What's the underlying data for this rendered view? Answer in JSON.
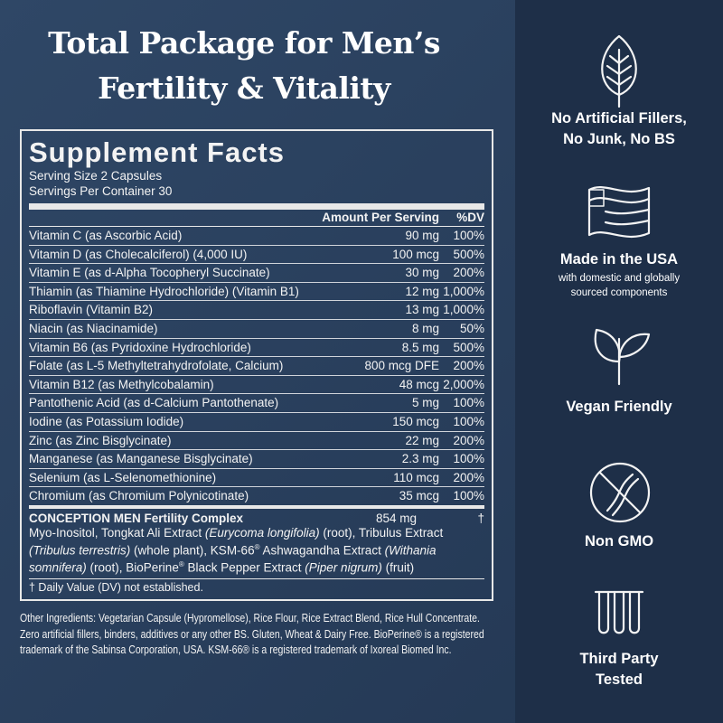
{
  "header": {
    "title_lines": [
      "Total Package for Men’s",
      "Fertility & Vitality"
    ]
  },
  "facts": {
    "title": "Supplement Facts",
    "serving_size": "Serving Size 2 Capsules",
    "servings_per_container": "Servings Per Container 30",
    "column_amount": "Amount Per Serving",
    "column_dv": "%DV",
    "rows": [
      [
        "Vitamin C (as Ascorbic Acid)",
        "90 mg",
        "100%"
      ],
      [
        "Vitamin D (as Cholecalciferol) (4,000 IU)",
        "100 mcg",
        "500%"
      ],
      [
        "Vitamin E (as d-Alpha Tocopheryl Succinate)",
        "30 mg",
        "200%"
      ],
      [
        "Thiamin (as Thiamine Hydrochloride) (Vitamin B1)",
        "12 mg",
        "1,000%"
      ],
      [
        "Riboflavin (Vitamin B2)",
        "13 mg",
        "1,000%"
      ],
      [
        "Niacin (as Niacinamide)",
        "8 mg",
        "50%"
      ],
      [
        "Vitamin B6 (as Pyridoxine Hydrochloride)",
        "8.5 mg",
        "500%"
      ],
      [
        "Folate (as L-5 Methyltetrahydrofolate, Calcium)",
        "800 mcg DFE",
        "200%"
      ],
      [
        "Vitamin B12 (as Methylcobalamin)",
        "48 mcg",
        "2,000%"
      ],
      [
        "Pantothenic Acid (as d-Calcium Pantothenate)",
        "5 mg",
        "100%"
      ],
      [
        "Iodine (as Potassium Iodide)",
        "150 mcg",
        "100%"
      ],
      [
        "Zinc (as Zinc Bisglycinate)",
        "22 mg",
        "200%"
      ],
      [
        "Manganese (as Manganese Bisglycinate)",
        "2.3 mg",
        "100%"
      ],
      [
        "Selenium (as L-Selenomethionine)",
        "110 mcg",
        "200%"
      ],
      [
        "Chromium (as Chromium Polynicotinate)",
        "35 mcg",
        "100%"
      ]
    ],
    "complex": {
      "name": "CONCEPTION MEN Fertility Complex",
      "amount": "854 mg",
      "dv": "†",
      "description": [
        "Myo-Inositol, Tongkat Ali Extract ",
        "(Eurycoma longifolia)",
        " (root), Tribulus Extract ",
        "(Tribulus terrestris)",
        " (whole plant), KSM-66",
        "®",
        " Ashwagandha Extract ",
        "(Withania somnifera)",
        " (root), BioPerine",
        "®",
        " Black Pepper Extract ",
        "(Piper nigrum)",
        " (fruit)"
      ]
    },
    "footnote": "† Daily Value (DV) not established."
  },
  "other_ingredients": [
    "Other Ingredients: Vegetarian Capsule (Hypromellose), Rice Flour, Rice Extract Blend, Rice Hull Concentrate.",
    "Zero artificial fillers, binders, additives or any other BS. Gluten, Wheat & Dairy Free. BioPerine® is a registered",
    "trademark of the Sabinsa Corporation, USA. KSM-66® is a registered trademark of Ixoreal Biomed Inc."
  ],
  "features": [
    {
      "lines": [
        "No Artificial Fillers,",
        "No Junk, No BS"
      ]
    },
    {
      "lines": [
        "Made in the USA"
      ],
      "sub": [
        "with domestic and globally",
        "sourced components"
      ]
    },
    {
      "lines": [
        "Vegan Friendly"
      ]
    },
    {
      "lines": [
        "Non GMO"
      ]
    },
    {
      "lines": [
        "Third Party",
        "Tested"
      ]
    }
  ]
}
